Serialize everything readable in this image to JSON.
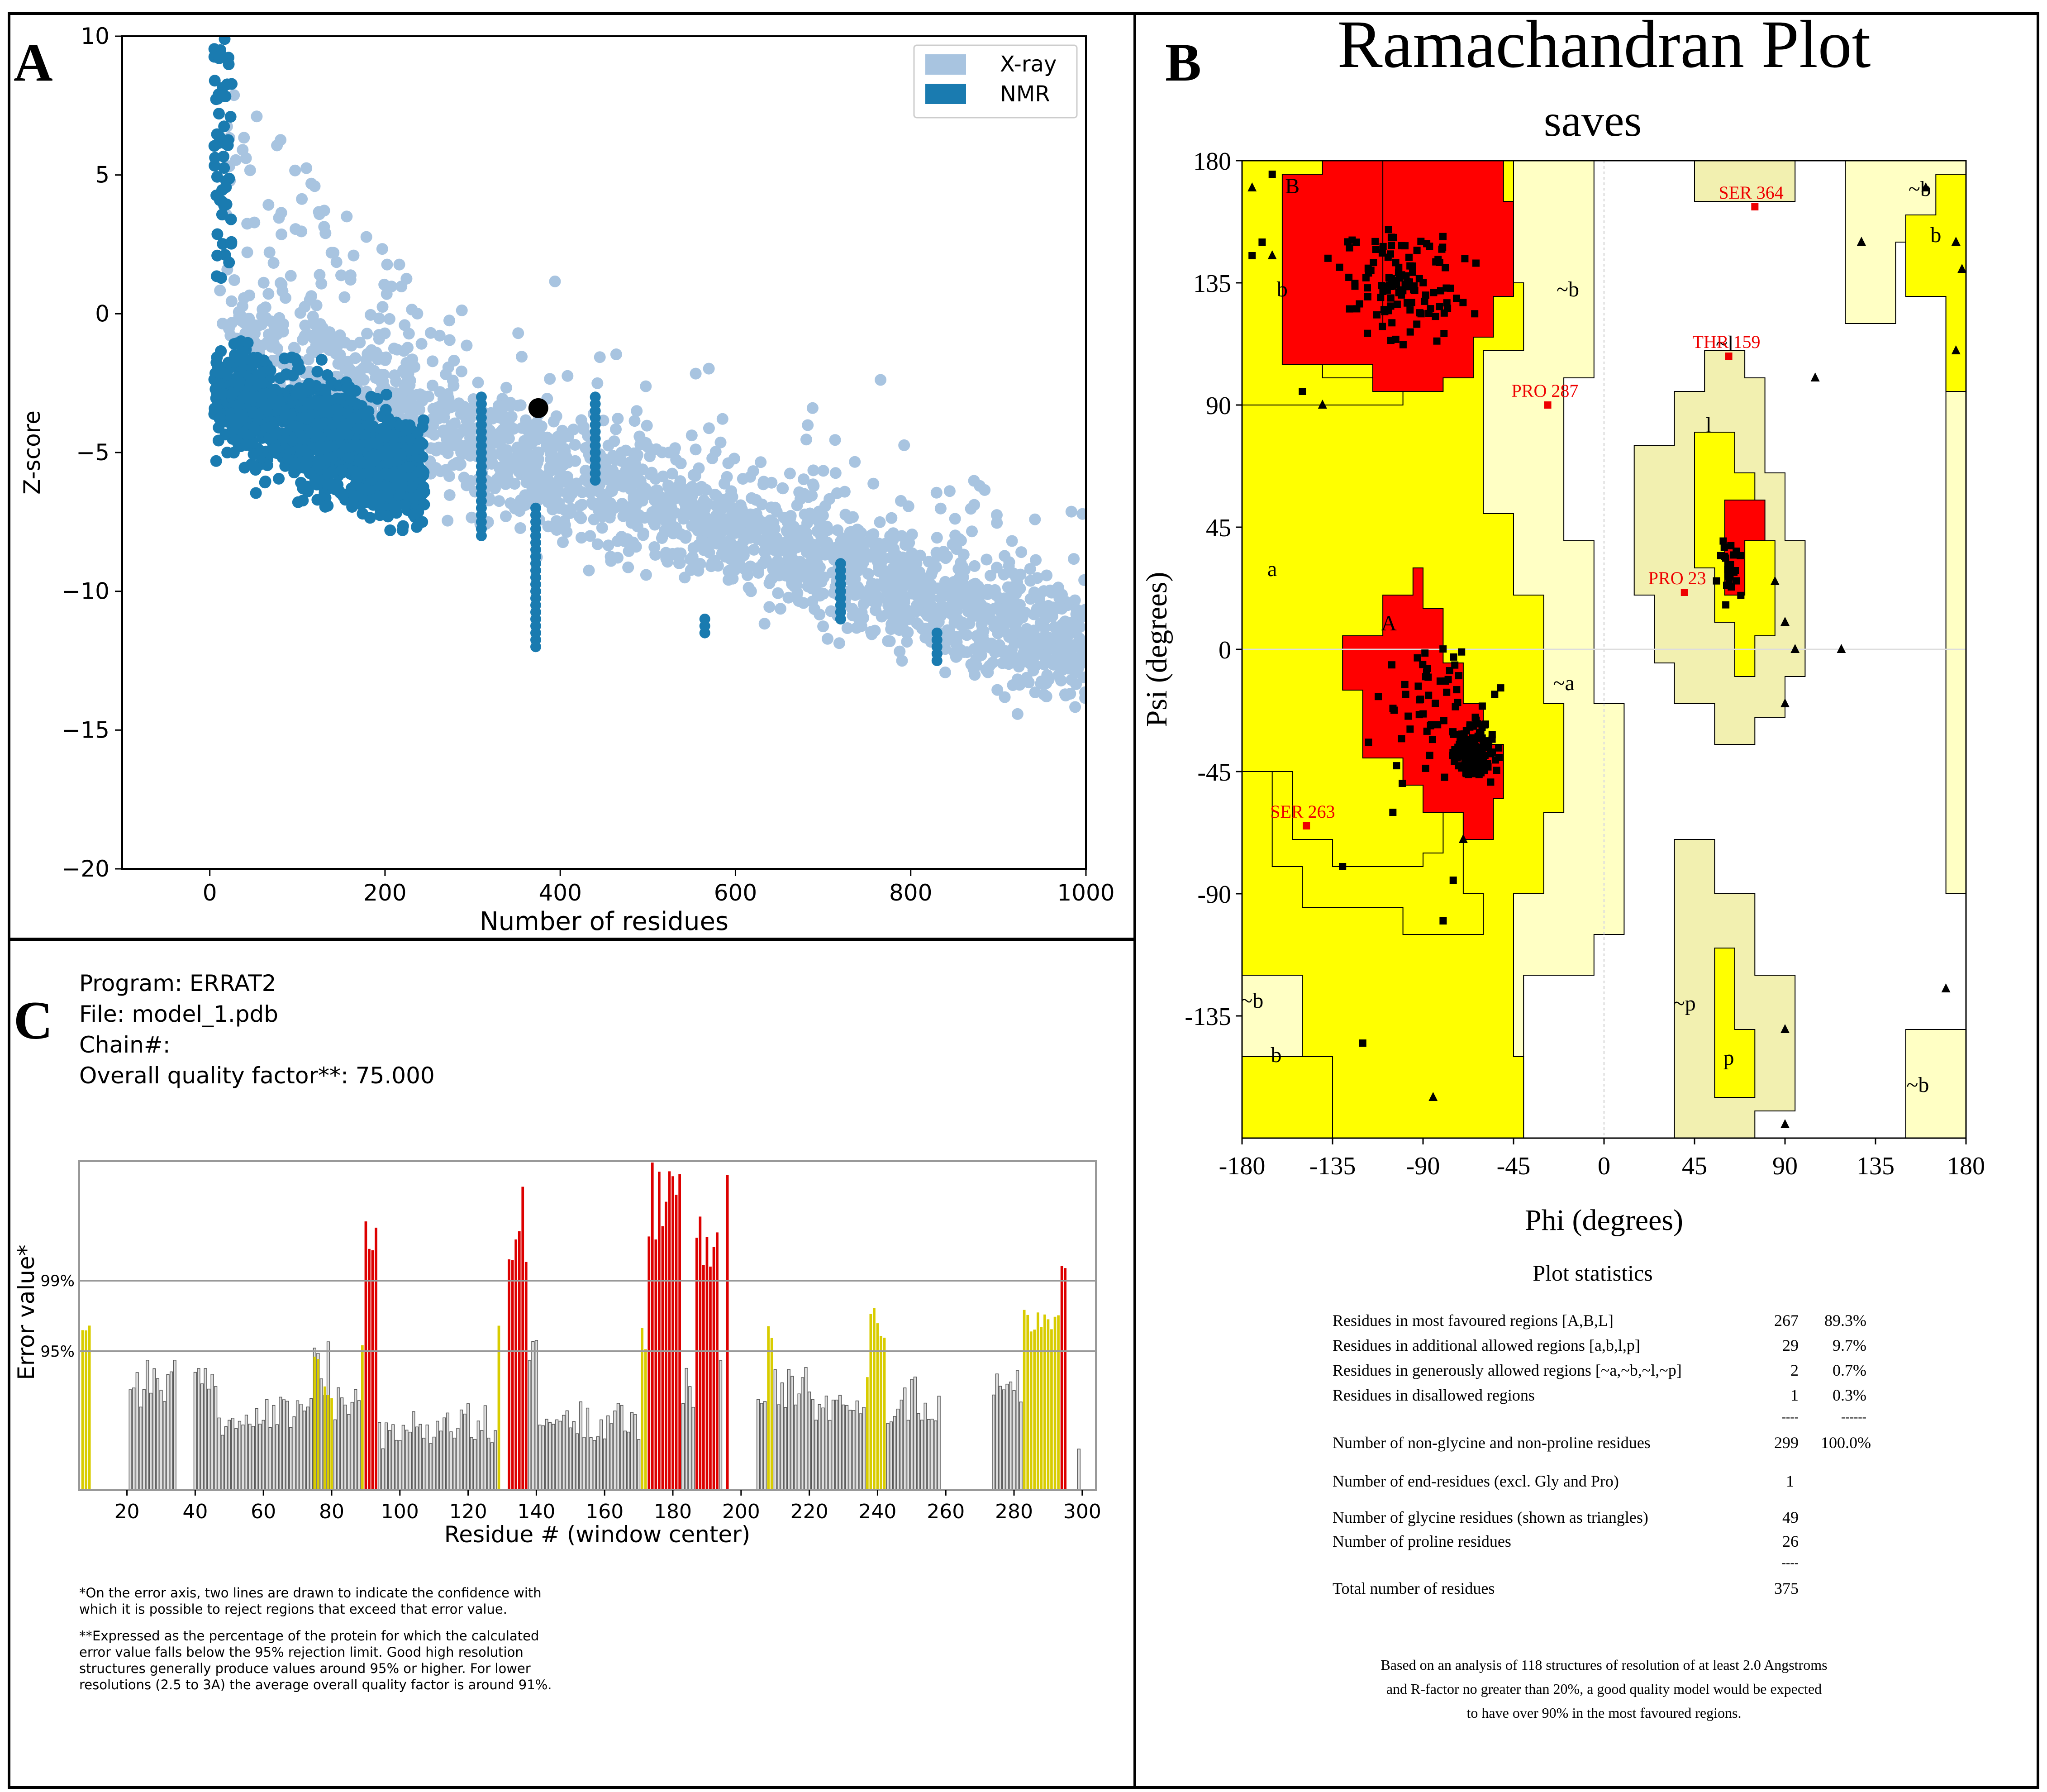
{
  "colors": {
    "xray": "#a8c4e0",
    "nmr": "#1a7bb0",
    "core": "#ff0000",
    "allowed": "#ffff00",
    "generous": "#ffffc4",
    "generous_dark": "#f2f0b0",
    "errat_red": "#dd0000",
    "errat_yellow": "#d8cc00",
    "errat_grey": "#e0e0e0"
  },
  "chart_data": [
    {
      "id": "A",
      "type": "scatter",
      "panel_label": "A",
      "xlabel": "Number of residues",
      "ylabel": "Z-score",
      "xlim": [
        -100,
        1000
      ],
      "ylim": [
        -20,
        10
      ],
      "xticks": [
        "0",
        "200",
        "400",
        "600",
        "800",
        "1000"
      ],
      "yticks": [
        "10",
        "5",
        "0",
        "−5",
        "−10",
        "−15",
        "−20"
      ],
      "legend": {
        "placement": "top-right",
        "entries": [
          "X-ray",
          "NMR"
        ]
      },
      "series": [
        {
          "name": "X-ray",
          "description": "dense cloud, Z-score decreasing from about 0 at 10 residues to about -12 at 1000 residues"
        },
        {
          "name": "NMR",
          "description": "dense cloud concentrated below 250 residues, Z-score -9 to 10"
        }
      ],
      "highlight_point": {
        "x": 375,
        "y": -3.4
      }
    },
    {
      "id": "B",
      "type": "scatter",
      "panel_label": "B",
      "title": "Ramachandran Plot",
      "subtitle": "saves",
      "xlabel": "Phi (degrees)",
      "ylabel": "Psi (degrees)",
      "xlim": [
        -180,
        180
      ],
      "ylim": [
        -180,
        180
      ],
      "xticks": [
        "-180",
        "-135",
        "-90",
        "-45",
        "0",
        "45",
        "90",
        "135",
        "180"
      ],
      "yticks": [
        "180",
        "135",
        "90",
        "45",
        "0",
        "-45",
        "-90",
        "-135"
      ],
      "region_labels": [
        {
          "text": "B",
          "phi": -155,
          "psi": 168
        },
        {
          "text": "b",
          "phi": -160,
          "psi": 130
        },
        {
          "text": "~b",
          "phi": -18,
          "psi": 130
        },
        {
          "text": "a",
          "phi": -165,
          "psi": 27
        },
        {
          "text": "A",
          "phi": -107,
          "psi": 7
        },
        {
          "text": "~a",
          "phi": -20,
          "psi": -15
        },
        {
          "text": "l",
          "phi": 52,
          "psi": 80
        },
        {
          "text": "~l",
          "phi": 60,
          "psi": 110
        },
        {
          "text": "~b",
          "phi": -175,
          "psi": -132
        },
        {
          "text": "b",
          "phi": -163,
          "psi": -152
        },
        {
          "text": "~p",
          "phi": 40,
          "psi": -133
        },
        {
          "text": "p",
          "phi": 62,
          "psi": -153
        },
        {
          "text": "~b",
          "phi": 157,
          "psi": 167
        },
        {
          "text": "b",
          "phi": 165,
          "psi": 150
        },
        {
          "text": "~b",
          "phi": 156,
          "psi": -163
        }
      ],
      "outlier_labels": [
        {
          "text": "SER 364",
          "phi": 75,
          "psi": 163
        },
        {
          "text": "THR 159",
          "phi": 62,
          "psi": 108
        },
        {
          "text": "PRO 287",
          "phi": -28,
          "psi": 90
        },
        {
          "text": "PRO 23",
          "phi": 40,
          "psi": 21
        },
        {
          "text": "SER 263",
          "phi": -148,
          "psi": -65
        }
      ],
      "statistics": {
        "heading": "Plot statistics",
        "rows": [
          {
            "label": "Residues in most favoured regions  [A,B,L]",
            "count": "267",
            "percent": "89.3%"
          },
          {
            "label": "Residues in additional allowed regions  [a,b,l,p]",
            "count": "29",
            "percent": "9.7%"
          },
          {
            "label": "Residues in generously allowed regions  [~a,~b,~l,~p]",
            "count": "2",
            "percent": "0.7%"
          },
          {
            "label": "Residues in disallowed regions",
            "count": "1",
            "percent": "0.3%"
          }
        ],
        "sep1_count": "----",
        "sep1_percent": "------",
        "nongly_label": "Number of non-glycine and non-proline residues",
        "nongly_count": "299",
        "nongly_percent": "100.0%",
        "end_label": "Number of end-residues (excl. Gly and Pro)",
        "end_count": "1",
        "gly_label": "Number of glycine residues (shown as triangles)",
        "gly_count": "49",
        "pro_label": "Number of proline residues",
        "pro_count": "26",
        "sep2_count": "----",
        "total_label": "Total number of residues",
        "total_count": "375",
        "note_lines": [
          "Based on an analysis of 118 structures of resolution of at least 2.0 Angstroms",
          "and R-factor no greater than 20%, a good quality model would be expected",
          "to have over 90% in the most favoured regions."
        ]
      }
    },
    {
      "id": "C",
      "type": "bar",
      "panel_label": "C",
      "header_lines": [
        "Program: ERRAT2",
        "File: model_1.pdb",
        "Chain#:",
        "Overall quality factor**: 75.000"
      ],
      "xlabel": "Residue # (window center)",
      "ylabel": "Error value*",
      "xlim": [
        6,
        304
      ],
      "ylim": [
        0,
        1.2
      ],
      "xticks": [
        "20",
        "40",
        "60",
        "80",
        "100",
        "120",
        "140",
        "160",
        "180",
        "200",
        "220",
        "240",
        "260",
        "280",
        "300"
      ],
      "threshold_labels": [
        "99%",
        "95%"
      ],
      "thresholds": [
        0.75,
        0.49
      ],
      "footnote1": [
        "*On the error axis, two lines are drawn to indicate the confidence with",
        "which it is possible to reject regions that exceed that error value."
      ],
      "footnote2": [
        "**Expressed as the percentage of the protein for which the calculated",
        "error value falls below the 95% rejection limit.  Good high resolution",
        "structures generally produce values around 95% or higher.  For lower",
        "resolutions (2.5 to 3A) the average overall quality factor is around 91%."
      ],
      "segments": [
        [
          7,
          9,
          0.57,
          0.62,
          "y"
        ],
        [
          21,
          34,
          0.3,
          0.5,
          "g"
        ],
        [
          40,
          46,
          0.34,
          0.45,
          "g"
        ],
        [
          47,
          60,
          0.2,
          0.3,
          "g"
        ],
        [
          61,
          72,
          0.22,
          0.34,
          "g"
        ],
        [
          73,
          79,
          0.25,
          0.55,
          "g"
        ],
        [
          75,
          76,
          0.45,
          0.55,
          "y"
        ],
        [
          78,
          80,
          0.3,
          0.52,
          "y"
        ],
        [
          81,
          88,
          0.24,
          0.4,
          "g"
        ],
        [
          89,
          89,
          0.5,
          0.55,
          "y"
        ],
        [
          90,
          93,
          0.85,
          1.0,
          "r"
        ],
        [
          94,
          103,
          0.15,
          0.25,
          "g"
        ],
        [
          104,
          128,
          0.15,
          0.32,
          "g"
        ],
        [
          129,
          129,
          0.6,
          0.6,
          "y"
        ],
        [
          132,
          137,
          0.7,
          1.12,
          "r"
        ],
        [
          138,
          140,
          0.45,
          0.55,
          "g"
        ],
        [
          141,
          170,
          0.18,
          0.33,
          "g"
        ],
        [
          171,
          172,
          0.5,
          0.62,
          "y"
        ],
        [
          173,
          182,
          0.9,
          1.2,
          "r"
        ],
        [
          183,
          186,
          0.3,
          0.45,
          "g"
        ],
        [
          187,
          193,
          0.78,
          1.0,
          "r"
        ],
        [
          194,
          194,
          0.45,
          0.5,
          "g"
        ],
        [
          196,
          196,
          1.15,
          1.15,
          "r"
        ],
        [
          205,
          207,
          0.3,
          0.4,
          "g"
        ],
        [
          208,
          209,
          0.45,
          0.6,
          "y"
        ],
        [
          210,
          220,
          0.3,
          0.5,
          "g"
        ],
        [
          221,
          236,
          0.25,
          0.35,
          "g"
        ],
        [
          237,
          237,
          0.4,
          0.45,
          "y"
        ],
        [
          238,
          242,
          0.55,
          0.68,
          "y"
        ],
        [
          243,
          258,
          0.24,
          0.42,
          "g"
        ],
        [
          274,
          282,
          0.3,
          0.45,
          "g"
        ],
        [
          283,
          287,
          0.55,
          0.75,
          "y"
        ],
        [
          288,
          293,
          0.57,
          0.67,
          "y"
        ],
        [
          294,
          295,
          0.8,
          0.88,
          "r"
        ],
        [
          299,
          299,
          0.15,
          0.15,
          "g"
        ]
      ]
    }
  ]
}
